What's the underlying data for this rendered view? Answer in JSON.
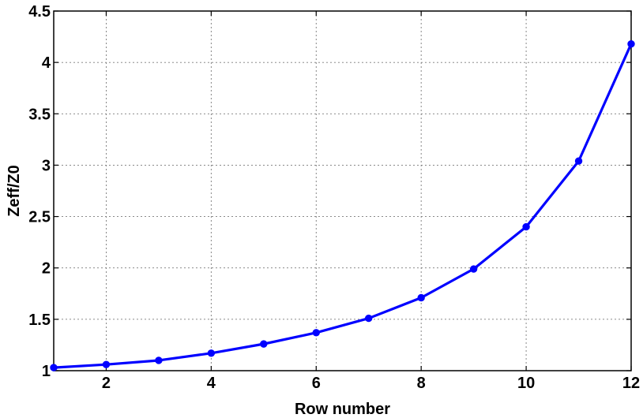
{
  "chart_data": {
    "type": "line",
    "title": "",
    "xlabel": "Row number",
    "ylabel": "Zeff/Z0",
    "xlim": [
      1,
      12
    ],
    "ylim": [
      1,
      4.5
    ],
    "xticks": [
      2,
      4,
      6,
      8,
      10,
      12
    ],
    "yticks": [
      1,
      1.5,
      2,
      2.5,
      3,
      3.5,
      4,
      4.5
    ],
    "xtick_labels": [
      "2",
      "4",
      "6",
      "8",
      "10",
      "12"
    ],
    "ytick_labels": [
      "1",
      "1.5",
      "2",
      "2.5",
      "3",
      "3.5",
      "4",
      "4.5"
    ],
    "grid": true,
    "legend": "none",
    "series": [
      {
        "color": "#0000ff",
        "marker": "circle",
        "x": [
          1,
          2,
          3,
          4,
          5,
          6,
          7,
          8,
          9,
          10,
          11,
          12
        ],
        "y": [
          1.03,
          1.06,
          1.1,
          1.17,
          1.26,
          1.37,
          1.51,
          1.71,
          1.99,
          2.4,
          3.04,
          4.18
        ]
      }
    ]
  }
}
